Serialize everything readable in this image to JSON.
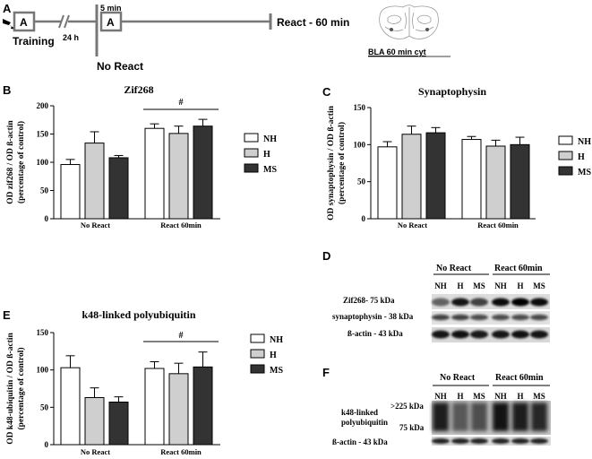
{
  "panel_a": {
    "letter": "A",
    "box1_label": "A",
    "training_label": "Training",
    "delay_label": "24 h",
    "box2_label": "A",
    "box2_duration": "5 min",
    "react_label": "React  - 60 min",
    "no_react_label": "No React",
    "region_label": "BLA 60 min  cyt"
  },
  "legend": {
    "entries": [
      "NH",
      "H",
      "MS"
    ],
    "colors": [
      "#ffffff",
      "#cfcfcf",
      "#333333"
    ]
  },
  "chart_data": [
    {
      "panel": "B",
      "type": "bar",
      "title": "Zif268",
      "ylabel_lines": [
        "OD zif268 / OD ß-actin",
        "(percentage of control)"
      ],
      "categories": [
        "No React",
        "React 60min"
      ],
      "series": [
        {
          "name": "NH",
          "values": [
            96,
            160
          ],
          "errors": [
            9,
            8
          ]
        },
        {
          "name": "H",
          "values": [
            134,
            151
          ],
          "errors": [
            20,
            13
          ]
        },
        {
          "name": "MS",
          "values": [
            108,
            164
          ],
          "errors": [
            4,
            12
          ]
        }
      ],
      "ylim": [
        0,
        200
      ],
      "yticks": [
        0,
        50,
        100,
        150,
        200
      ],
      "significance": "#",
      "significance_group": 1
    },
    {
      "panel": "C",
      "type": "bar",
      "title": "Synaptophysin",
      "ylabel_lines": [
        "OD synaptophysin / OD ß-actin",
        "(percentage of control)"
      ],
      "categories": [
        "No React",
        "React 60min"
      ],
      "series": [
        {
          "name": "NH",
          "values": [
            97,
            107
          ],
          "errors": [
            7,
            4
          ]
        },
        {
          "name": "H",
          "values": [
            114,
            98
          ],
          "errors": [
            11,
            8
          ]
        },
        {
          "name": "MS",
          "values": [
            116,
            100
          ],
          "errors": [
            7,
            10
          ]
        }
      ],
      "ylim": [
        0,
        150
      ],
      "yticks": [
        0,
        50,
        100,
        150
      ],
      "significance": "",
      "significance_group": null
    },
    {
      "panel": "E",
      "type": "bar",
      "title": "k48-linked polyubiquitin",
      "ylabel_lines": [
        "OD k48-ubiquitin / OD ß-actin",
        "(percentage of control)"
      ],
      "categories": [
        "No React",
        "React 60min"
      ],
      "series": [
        {
          "name": "NH",
          "values": [
            103,
            102
          ],
          "errors": [
            16,
            9
          ]
        },
        {
          "name": "H",
          "values": [
            63,
            95
          ],
          "errors": [
            13,
            14
          ]
        },
        {
          "name": "MS",
          "values": [
            57,
            104
          ],
          "errors": [
            7,
            20
          ]
        }
      ],
      "ylim": [
        0,
        150
      ],
      "yticks": [
        0,
        50,
        100,
        150
      ],
      "significance": "#",
      "significance_group": 1
    }
  ],
  "panel_d": {
    "letter": "D",
    "group_labels": [
      "No React",
      "React 60min"
    ],
    "lane_labels": [
      "NH",
      "H",
      "MS",
      "NH",
      "H",
      "MS"
    ],
    "bands": [
      "Zif268- 75 kDa",
      "synaptophysin - 38 kDa",
      "ß-actin - 43 kDa"
    ]
  },
  "panel_f": {
    "letter": "F",
    "group_labels": [
      "No React",
      "React 60min"
    ],
    "lane_labels": [
      "NH",
      "H",
      "MS",
      "NH",
      "H",
      "MS"
    ],
    "protein_label_lines": [
      "k48-linked",
      "polyubiquitin"
    ],
    "mw_top": ">225 kDa",
    "mw_bottom": "75 kDa",
    "actin_label": "ß-actin - 43 kDa"
  }
}
